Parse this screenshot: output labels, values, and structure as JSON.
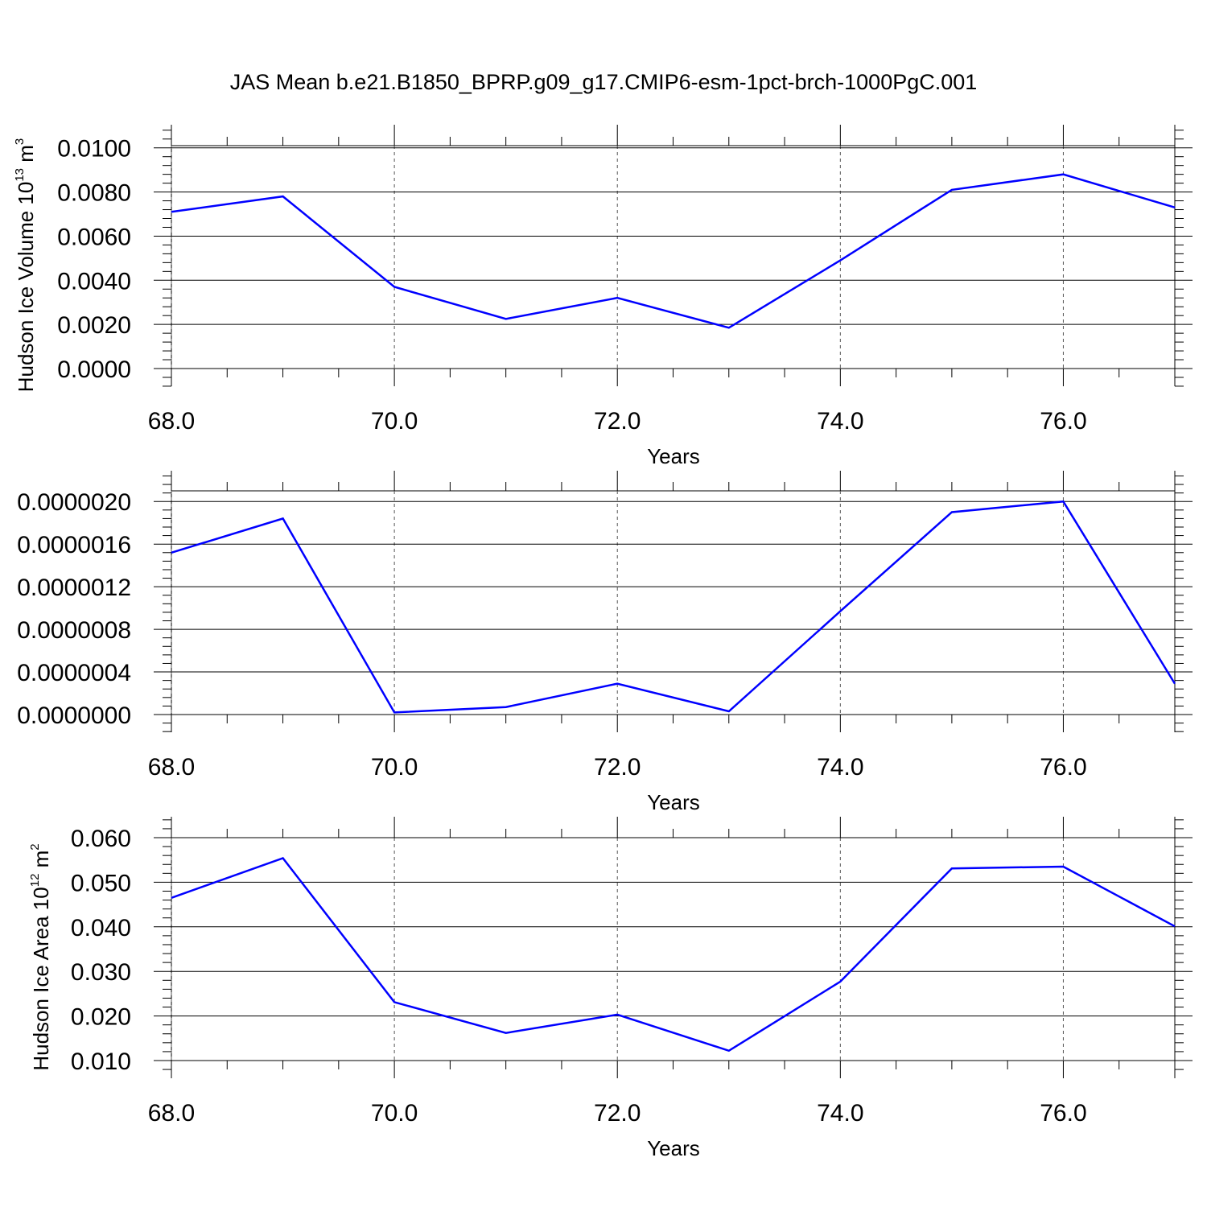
{
  "title": "JAS Mean b.e21.B1850_BPRP.g09_g17.CMIP6-esm-1pct-brch-1000PgC.001",
  "colors": {
    "line": "#0000ff",
    "axis": "#000000",
    "grid": "#555555"
  },
  "chart_data": [
    {
      "type": "line",
      "xlabel": "Years",
      "ylabel": {
        "main": "Hudson Ice Volume 10",
        "exp": "13",
        "unit": " m",
        "unit_exp": "3"
      },
      "xlim": [
        68,
        77
      ],
      "ylim": [
        0,
        0.0101
      ],
      "xticks": [
        "68.0",
        "70.0",
        "72.0",
        "74.0",
        "76.0"
      ],
      "yticks": [
        "0.0000",
        "0.0020",
        "0.0040",
        "0.0060",
        "0.0080",
        "0.0100"
      ],
      "grid": "vertical dashed at major x ticks",
      "x": [
        68,
        69,
        70,
        71,
        72,
        73,
        74,
        75,
        76,
        77
      ],
      "values": [
        0.0071,
        0.0078,
        0.0037,
        0.00225,
        0.0032,
        0.00185,
        0.0049,
        0.0081,
        0.0088,
        0.0073
      ]
    },
    {
      "type": "line",
      "xlabel": "Years",
      "ylabel": null,
      "xlim": [
        68,
        77
      ],
      "ylim": [
        0,
        2.1e-06
      ],
      "xticks": [
        "68.0",
        "70.0",
        "72.0",
        "74.0",
        "76.0"
      ],
      "yticks": [
        "0.0000000",
        "0.0000004",
        "0.0000008",
        "0.0000012",
        "0.0000016",
        "0.0000020"
      ],
      "grid": "vertical dashed at major x ticks",
      "x": [
        68,
        69,
        70,
        71,
        72,
        73,
        74,
        75,
        76,
        77
      ],
      "values": [
        1.52e-06,
        1.84e-06,
        2e-08,
        7e-08,
        2.9e-07,
        3e-08,
        9.7e-07,
        1.9e-06,
        2e-06,
        2.9e-07
      ]
    },
    {
      "type": "line",
      "xlabel": "Years",
      "ylabel": {
        "main": "Hudson Ice Area 10",
        "exp": "12",
        "unit": " m",
        "unit_exp": "2"
      },
      "xlim": [
        68,
        77
      ],
      "ylim": [
        0.01,
        0.06
      ],
      "xticks": [
        "68.0",
        "70.0",
        "72.0",
        "74.0",
        "76.0"
      ],
      "yticks": [
        "0.010",
        "0.020",
        "0.030",
        "0.040",
        "0.050",
        "0.060"
      ],
      "grid": "vertical dashed at major x ticks",
      "x": [
        68,
        69,
        70,
        71,
        72,
        73,
        74,
        75,
        76,
        77
      ],
      "values": [
        0.0465,
        0.0554,
        0.0231,
        0.0162,
        0.0203,
        0.0122,
        0.0277,
        0.0531,
        0.0535,
        0.0401
      ]
    }
  ]
}
